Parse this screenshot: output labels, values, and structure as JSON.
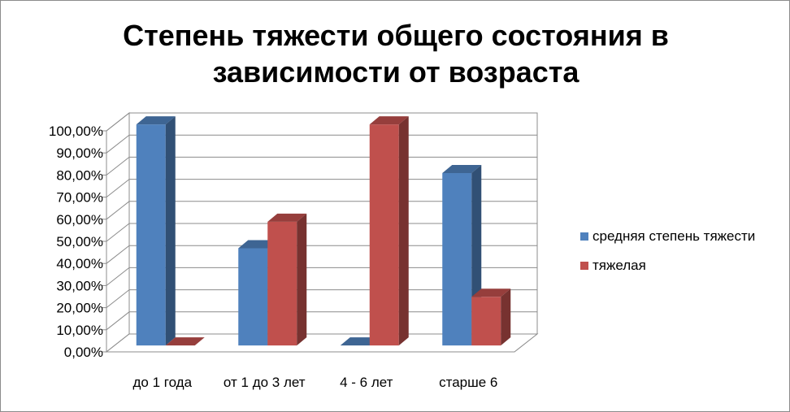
{
  "chart_data": {
    "type": "bar",
    "title_lines": [
      "Степень тяжести общего состояния в",
      "зависимости от возраста"
    ],
    "categories": [
      "до 1 года",
      "от 1 до 3 лет",
      "4 - 6 лет",
      "старше 6"
    ],
    "series": [
      {
        "name": "средняя степень тяжести",
        "values": [
          100,
          44,
          0,
          78
        ],
        "color": "#4F81BD"
      },
      {
        "name": "тяжелая",
        "values": [
          0,
          56,
          100,
          22
        ],
        "color": "#C0504D"
      }
    ],
    "ylim": [
      0,
      100
    ],
    "yticks": [
      "0,00%",
      "10,00%",
      "20,00%",
      "30,00%",
      "40,00%",
      "50,00%",
      "60,00%",
      "70,00%",
      "80,00%",
      "90,00%",
      "100,00%"
    ],
    "value_format": "percent",
    "grid": true,
    "three_d": true,
    "legend_position": "right"
  }
}
